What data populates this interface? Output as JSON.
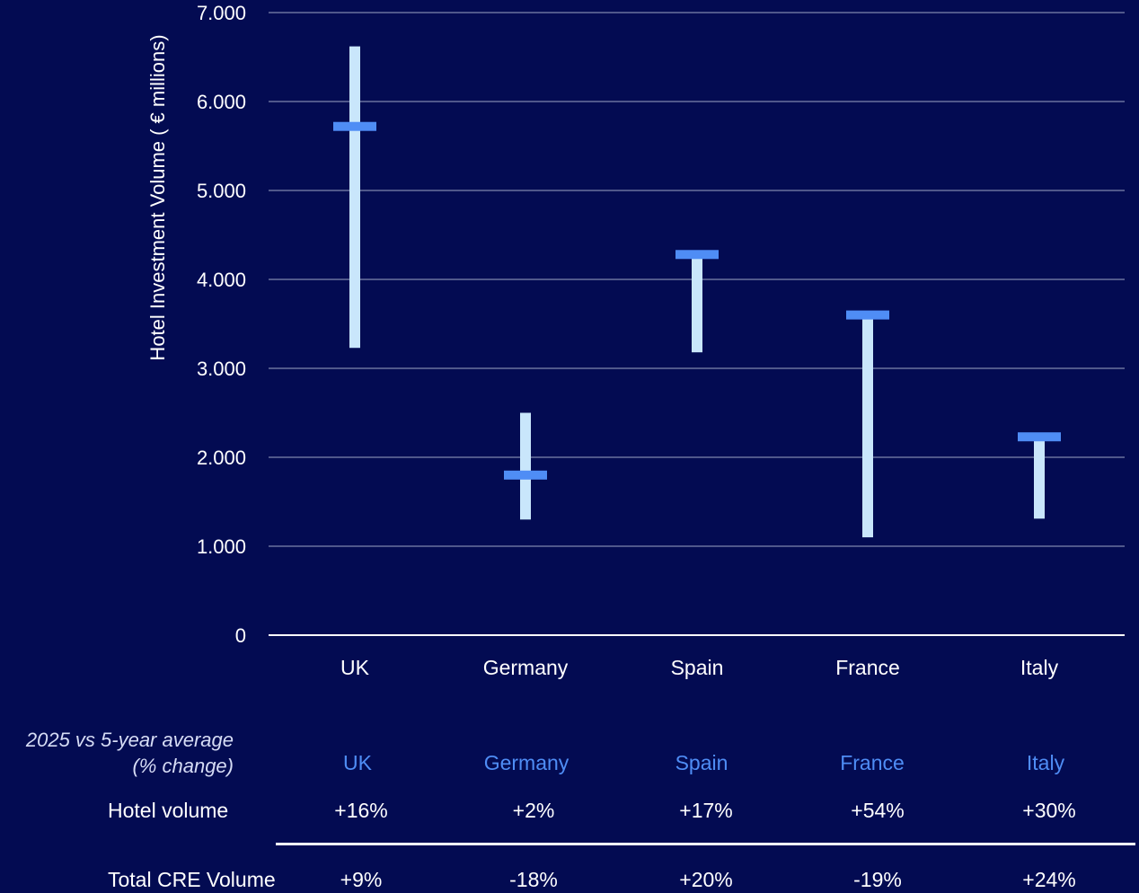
{
  "chart_data": {
    "type": "range",
    "ylabel": "Hotel Investment Volume ( € millions)",
    "ylim": [
      0,
      7000
    ],
    "yticks": [
      {
        "value": 0,
        "label": "0"
      },
      {
        "value": 1000,
        "label": "1.000"
      },
      {
        "value": 2000,
        "label": "2.000"
      },
      {
        "value": 3000,
        "label": "3.000"
      },
      {
        "value": 4000,
        "label": "4.000"
      },
      {
        "value": 5000,
        "label": "5.000"
      },
      {
        "value": 6000,
        "label": "6.000"
      },
      {
        "value": 7000,
        "label": "7.000"
      }
    ],
    "categories": [
      "UK",
      "Germany",
      "Spain",
      "France",
      "Italy"
    ],
    "ranges": [
      {
        "low": 3230,
        "high": 6620
      },
      {
        "low": 1300,
        "high": 2500
      },
      {
        "low": 3180,
        "high": 4280
      },
      {
        "low": 1100,
        "high": 3600
      },
      {
        "low": 1310,
        "high": 2230
      }
    ],
    "markers": [
      5720,
      1800,
      4280,
      3600,
      2230
    ],
    "grid": true,
    "colors": {
      "range": "#c9e6fb",
      "marker": "#4f8df5",
      "grid": "#6b739e",
      "background": "#030b52"
    }
  },
  "table": {
    "note": [
      "2025 vs 5-year average",
      "(% change)"
    ],
    "headers": [
      "UK",
      "Germany",
      "Spain",
      "France",
      "Italy"
    ],
    "rows": [
      {
        "label": "Hotel volume",
        "values": [
          "+16%",
          "+2%",
          "+17%",
          "+54%",
          "+30%"
        ]
      },
      {
        "label": "Total CRE Volume",
        "values": [
          "+9%",
          "-18%",
          "+20%",
          "-19%",
          "+24%"
        ]
      }
    ]
  }
}
